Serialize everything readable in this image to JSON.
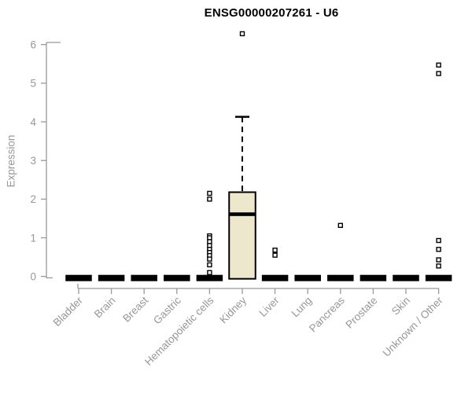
{
  "chart_data": {
    "type": "boxplot",
    "title": "ENSG00000207261 - U6",
    "ylabel": "Expression",
    "xlabel": "",
    "y_ticks": [
      "0",
      "1",
      "2",
      "3",
      "4",
      "5",
      "6"
    ],
    "ylim": [
      -0.35,
      6.45
    ],
    "grid": false,
    "legend": "none",
    "categories": [
      "Bladder",
      "Brain",
      "Breast",
      "Gastric",
      "Hematopoietic cells",
      "Kidney",
      "Liver",
      "Lung",
      "Pancreas",
      "Prostate",
      "Skin",
      "Unknown / Other"
    ],
    "series": [
      {
        "label": "Bladder",
        "q1": 0,
        "median": 0,
        "q3": 0,
        "whisker_low": 0,
        "whisker_high": 0,
        "outliers": []
      },
      {
        "label": "Brain",
        "q1": 0,
        "median": 0,
        "q3": 0,
        "whisker_low": 0,
        "whisker_high": 0,
        "outliers": []
      },
      {
        "label": "Breast",
        "q1": 0,
        "median": 0,
        "q3": 0,
        "whisker_low": 0,
        "whisker_high": 0,
        "outliers": []
      },
      {
        "label": "Gastric",
        "q1": 0,
        "median": 0,
        "q3": 0,
        "whisker_low": 0,
        "whisker_high": 0,
        "outliers": []
      },
      {
        "label": "Hematopoietic cells",
        "q1": 0,
        "median": 0,
        "q3": 0,
        "whisker_low": 0,
        "whisker_high": 0,
        "outliers": [
          2.15,
          2.0,
          1.05,
          1.0,
          0.9,
          0.8,
          0.7,
          0.62,
          0.54,
          0.45,
          0.3,
          0.1
        ]
      },
      {
        "label": "Kidney",
        "q1": 0,
        "median": 1.61,
        "q3": 2.18,
        "whisker_low": 0,
        "whisker_high": 4.13,
        "outliers": [
          6.28
        ]
      },
      {
        "label": "Liver",
        "q1": 0,
        "median": 0,
        "q3": 0,
        "whisker_low": 0,
        "whisker_high": 0,
        "outliers": [
          0.68,
          0.55
        ]
      },
      {
        "label": "Lung",
        "q1": 0,
        "median": 0,
        "q3": 0,
        "whisker_low": 0,
        "whisker_high": 0,
        "outliers": []
      },
      {
        "label": "Pancreas",
        "q1": 0,
        "median": 0,
        "q3": 0,
        "whisker_low": 0,
        "whisker_high": 0,
        "outliers": [
          1.32
        ]
      },
      {
        "label": "Prostate",
        "q1": 0,
        "median": 0,
        "q3": 0,
        "whisker_low": 0,
        "whisker_high": 0,
        "outliers": []
      },
      {
        "label": "Skin",
        "q1": 0,
        "median": 0,
        "q3": 0,
        "whisker_low": 0,
        "whisker_high": 0,
        "outliers": []
      },
      {
        "label": "Unknown / Other",
        "q1": 0,
        "median": 0,
        "q3": 0,
        "whisker_low": 0,
        "whisker_high": 0,
        "outliers": [
          5.47,
          5.25,
          0.93,
          0.7,
          0.43,
          0.27
        ]
      }
    ],
    "colors": {
      "box_fill": "#EDE7CB",
      "box_stroke": "#000000",
      "median": "#000000",
      "outlier_stroke": "#000000",
      "axis": "#999999",
      "tick_text": "#979797",
      "title_text": "#000000",
      "background": "#FFFFFF"
    }
  }
}
